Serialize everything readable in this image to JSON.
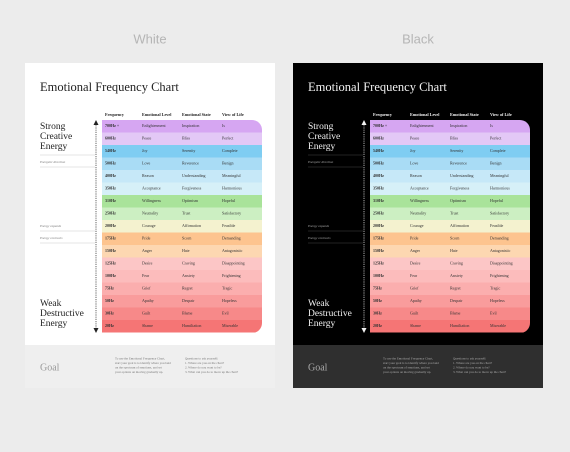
{
  "variants": [
    "White",
    "Black"
  ],
  "title": "Emotional Frequency Chart",
  "headers": [
    "Frequency",
    "Emotional Level",
    "Emotional State",
    "View of Life"
  ],
  "rows": [
    [
      "700Hz +",
      "Enlightenment",
      "Inspiration",
      "Is"
    ],
    [
      "600Hz",
      "Peace",
      "Bliss",
      "Perfect"
    ],
    [
      "540Hz",
      "Joy",
      "Serenity",
      "Complete"
    ],
    [
      "500Hz",
      "Love",
      "Reverence",
      "Benign"
    ],
    [
      "400Hz",
      "Reason",
      "Understanding",
      "Meaningful"
    ],
    [
      "350Hz",
      "Acceptance",
      "Forgiveness",
      "Harmonious"
    ],
    [
      "310Hz",
      "Willingness",
      "Optimism",
      "Hopeful"
    ],
    [
      "250Hz",
      "Neutrality",
      "Trust",
      "Satisfactory"
    ],
    [
      "200Hz",
      "Courage",
      "Affirmation",
      "Feasible"
    ],
    [
      "175Hz",
      "Pride",
      "Scorn",
      "Demanding"
    ],
    [
      "150Hz",
      "Anger",
      "Hate",
      "Antagonistic"
    ],
    [
      "125Hz",
      "Desire",
      "Craving",
      "Disappointing"
    ],
    [
      "100Hz",
      "Fear",
      "Anxiety",
      "Frightening"
    ],
    [
      "75Hz",
      "Grief",
      "Regret",
      "Tragic"
    ],
    [
      "50Hz",
      "Apathy",
      "Despair",
      "Hopeless"
    ],
    [
      "30Hz",
      "Guilt",
      "Blame",
      "Evil"
    ],
    [
      "20Hz",
      "Shame",
      "Humiliation",
      "Miserable"
    ]
  ],
  "top_label": [
    "Strong",
    "Creative",
    "Energy"
  ],
  "bottom_label": [
    "Weak",
    "Destructive",
    "Energy"
  ],
  "notes": [
    "Energetic direction",
    "Energy expands",
    "Energy contracts"
  ],
  "footer": {
    "heading": "Goal",
    "instructions": [
      "To use the Emotional Frequency Chart,",
      "start your goal is to identify where you land",
      "on the spectrum of emotions, and set",
      "your options on moving gradually up."
    ],
    "questions": [
      "Questions to ask yourself:",
      "1. Where are you on the chart?",
      "2. Where do you want to be?",
      "3. What can you do to move up the chart?"
    ]
  }
}
